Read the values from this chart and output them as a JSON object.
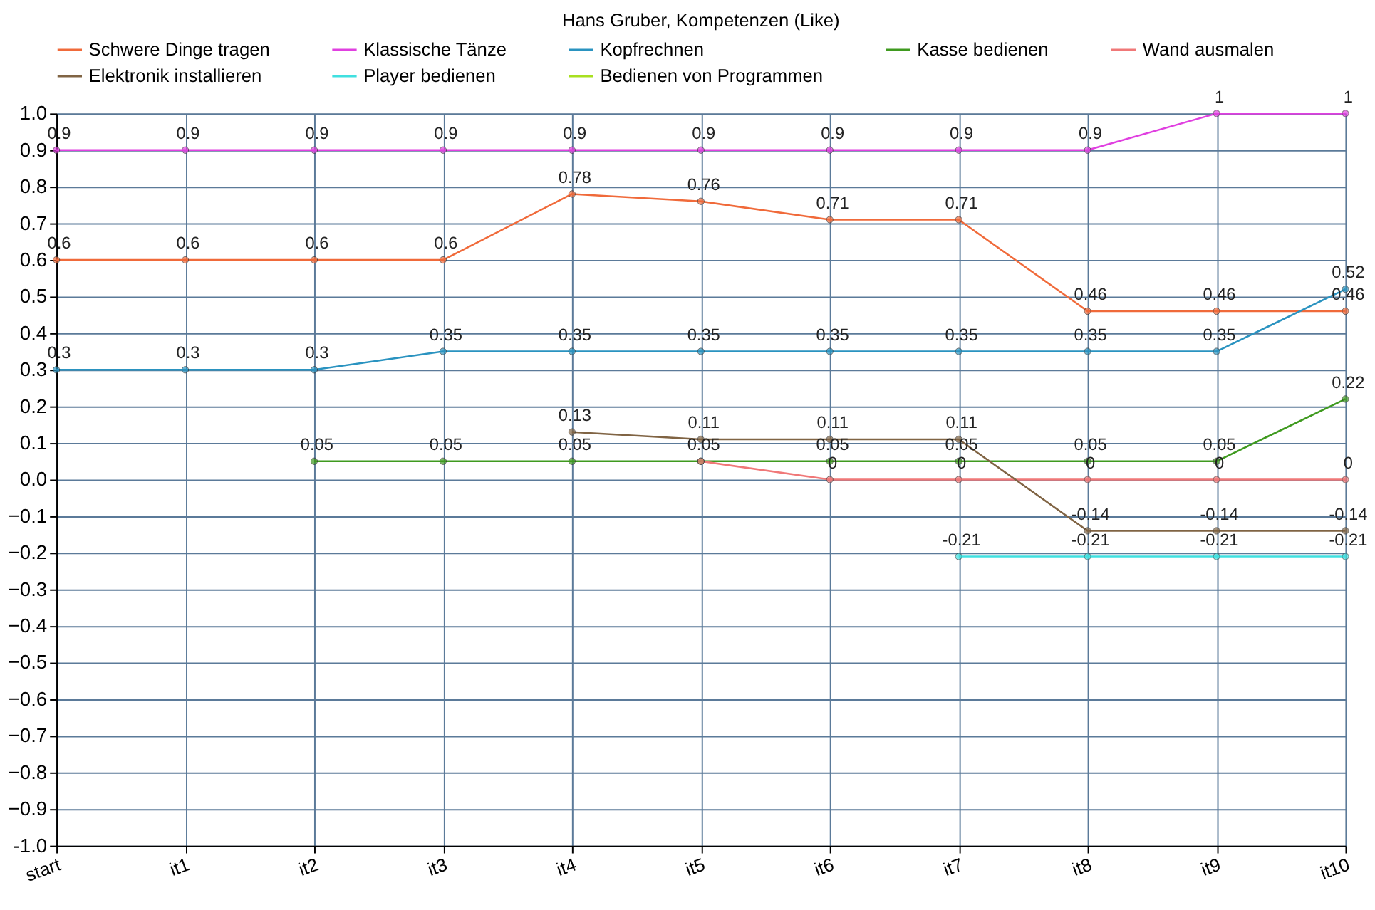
{
  "chart_data": {
    "type": "line",
    "title": "Hans Gruber, Kompetenzen (Like)",
    "categories": [
      "start",
      "it1",
      "it2",
      "it3",
      "it4",
      "it5",
      "it6",
      "it7",
      "it8",
      "it9",
      "it10"
    ],
    "series": [
      {
        "name": "Schwere Dinge tragen",
        "color": "#f06a3a",
        "values": [
          0.6,
          0.6,
          0.6,
          0.6,
          0.78,
          0.76,
          0.71,
          0.71,
          0.46,
          0.46,
          0.46
        ]
      },
      {
        "name": "Klassische Tänze",
        "color": "#e040e0",
        "values": [
          0.9,
          0.9,
          0.9,
          0.9,
          0.9,
          0.9,
          0.9,
          0.9,
          0.9,
          1,
          1
        ]
      },
      {
        "name": "Kopfrechnen",
        "color": "#2a93c0",
        "values": [
          0.3,
          0.3,
          0.3,
          0.35,
          0.35,
          0.35,
          0.35,
          0.35,
          0.35,
          0.35,
          0.52
        ]
      },
      {
        "name": "Kasse bedienen",
        "color": "#3f9a1f",
        "values": [
          null,
          null,
          0.05,
          0.05,
          0.05,
          0.05,
          0.05,
          0.05,
          0.05,
          0.05,
          0.22
        ]
      },
      {
        "name": "Wand ausmalen",
        "color": "#f07878",
        "values": [
          null,
          null,
          null,
          null,
          null,
          0.05,
          0,
          0,
          0,
          0,
          0
        ],
        "value_labels": [
          null,
          null,
          null,
          null,
          null,
          null,
          "0",
          "0",
          "0",
          "0",
          "0"
        ]
      },
      {
        "name": "Elektronik installieren",
        "color": "#806444",
        "values": [
          null,
          null,
          null,
          null,
          0.13,
          0.11,
          0.11,
          0.11,
          -0.14,
          -0.14,
          -0.14
        ]
      },
      {
        "name": "Player bedienen",
        "color": "#40e0e0",
        "values": [
          null,
          null,
          null,
          null,
          null,
          null,
          null,
          -0.21,
          -0.21,
          -0.21,
          -0.21
        ]
      },
      {
        "name": "Bedienen von Programmen",
        "color": "#a8e020",
        "values": [
          null,
          null,
          null,
          null,
          null,
          null,
          null,
          null,
          null,
          null,
          null
        ]
      }
    ],
    "ylim": [
      -1,
      1
    ],
    "yticks": [
      {
        "value": -1,
        "label": "-1.0"
      },
      -0.9,
      -0.8,
      -0.7,
      -0.6,
      -0.5,
      -0.4,
      -0.3,
      -0.2,
      -0.1,
      {
        "value": 0,
        "label": "0.0"
      },
      0.1,
      0.2,
      0.3,
      0.4,
      0.5,
      0.6,
      0.7,
      0.8,
      0.9,
      {
        "value": 1,
        "label": "1.0"
      }
    ],
    "data_labels": true,
    "grid": true,
    "legend": "top",
    "marker": "circle",
    "line_style": "solid"
  }
}
